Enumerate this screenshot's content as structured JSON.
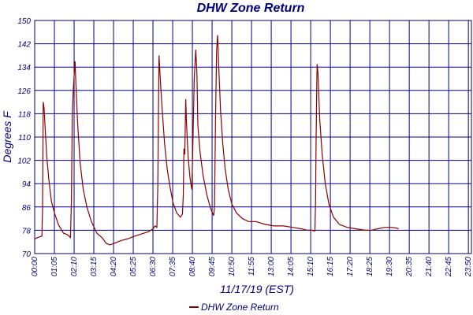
{
  "chart_data": {
    "type": "line",
    "title": "DHW Zone Return",
    "xlabel": "11/17/19 (EST)",
    "ylabel": "Degrees F",
    "ylim": [
      70,
      150
    ],
    "y_ticks": [
      70,
      78,
      86,
      94,
      102,
      110,
      118,
      126,
      134,
      142,
      150
    ],
    "x_ticks": [
      {
        "label": "00:00",
        "minutes": 0
      },
      {
        "label": "01:05",
        "minutes": 65
      },
      {
        "label": "02:10",
        "minutes": 130
      },
      {
        "label": "03:15",
        "minutes": 195
      },
      {
        "label": "04:20",
        "minutes": 260
      },
      {
        "label": "05:25",
        "minutes": 325
      },
      {
        "label": "06:30",
        "minutes": 390
      },
      {
        "label": "07:35",
        "minutes": 455
      },
      {
        "label": "08:40",
        "minutes": 520
      },
      {
        "label": "09:45",
        "minutes": 585
      },
      {
        "label": "10:50",
        "minutes": 650
      },
      {
        "label": "11:55",
        "minutes": 715
      },
      {
        "label": "13:00",
        "minutes": 780
      },
      {
        "label": "14:05",
        "minutes": 845
      },
      {
        "label": "15:10",
        "minutes": 910
      },
      {
        "label": "16:15",
        "minutes": 975
      },
      {
        "label": "17:20",
        "minutes": 1040
      },
      {
        "label": "18:25",
        "minutes": 1105
      },
      {
        "label": "19:30",
        "minutes": 1170
      },
      {
        "label": "20:35",
        "minutes": 1235
      },
      {
        "label": "21:40",
        "minutes": 1300
      },
      {
        "label": "22:45",
        "minutes": 1365
      },
      {
        "label": "23:50",
        "minutes": 1430
      }
    ],
    "xlim_minutes": [
      0,
      1440
    ],
    "grid": true,
    "legend_position": "bottom-center",
    "series": [
      {
        "name": "DHW Zone Return",
        "color": "#8b0000",
        "points": [
          [
            0,
            75.0
          ],
          [
            10,
            75.5
          ],
          [
            24,
            76.0
          ],
          [
            26,
            86.0
          ],
          [
            28,
            122.0
          ],
          [
            31,
            120.0
          ],
          [
            35,
            112.0
          ],
          [
            40,
            103.0
          ],
          [
            47,
            95.0
          ],
          [
            55,
            88.0
          ],
          [
            65,
            84.0
          ],
          [
            78,
            80.0
          ],
          [
            95,
            77.0
          ],
          [
            108,
            76.5
          ],
          [
            118,
            75.5
          ],
          [
            121,
            88.0
          ],
          [
            124,
            118.0
          ],
          [
            127,
            126.0
          ],
          [
            133,
            136.0
          ],
          [
            136,
            128.0
          ],
          [
            142,
            114.0
          ],
          [
            150,
            101.0
          ],
          [
            160,
            92.0
          ],
          [
            172,
            86.0
          ],
          [
            187,
            81.0
          ],
          [
            205,
            77.0
          ],
          [
            222,
            75.5
          ],
          [
            236,
            73.5
          ],
          [
            248,
            73.0
          ],
          [
            262,
            73.5
          ],
          [
            285,
            74.5
          ],
          [
            305,
            75.0
          ],
          [
            330,
            76.0
          ],
          [
            360,
            77.0
          ],
          [
            375,
            77.5
          ],
          [
            390,
            78.5
          ],
          [
            397,
            79.5
          ],
          [
            403,
            79.0
          ],
          [
            405,
            89.0
          ],
          [
            406,
            93.0
          ],
          [
            408,
            119.0
          ],
          [
            410,
            138.0
          ],
          [
            414,
            130.0
          ],
          [
            420,
            120.0
          ],
          [
            428,
            108.0
          ],
          [
            437,
            99.0
          ],
          [
            446,
            93.0
          ],
          [
            456,
            87.5
          ],
          [
            468,
            84.0
          ],
          [
            480,
            82.5
          ],
          [
            487,
            83.5
          ],
          [
            490,
            90.0
          ],
          [
            492,
            106.0
          ],
          [
            495,
            104.0
          ],
          [
            498,
            123.0
          ],
          [
            501,
            114.0
          ],
          [
            506,
            103.0
          ],
          [
            512,
            96.0
          ],
          [
            518,
            92.0
          ],
          [
            521,
            104.0
          ],
          [
            526,
            130.0
          ],
          [
            531,
            140.0
          ],
          [
            535,
            132.0
          ],
          [
            538,
            114.0
          ],
          [
            545,
            105.0
          ],
          [
            555,
            97.0
          ],
          [
            568,
            90.0
          ],
          [
            580,
            85.5
          ],
          [
            590,
            83.0
          ],
          [
            593,
            86.0
          ],
          [
            596,
            114.0
          ],
          [
            600,
            140.0
          ],
          [
            603,
            145.0
          ],
          [
            607,
            134.0
          ],
          [
            613,
            119.0
          ],
          [
            620,
            108.0
          ],
          [
            628,
            99.0
          ],
          [
            638,
            92.0
          ],
          [
            650,
            87.0
          ],
          [
            665,
            84.0
          ],
          [
            685,
            82.0
          ],
          [
            705,
            81.0
          ],
          [
            730,
            81.0
          ],
          [
            760,
            80.0
          ],
          [
            790,
            79.5
          ],
          [
            820,
            79.5
          ],
          [
            850,
            79.0
          ],
          [
            880,
            78.5
          ],
          [
            900,
            78.0
          ],
          [
            915,
            78.0
          ],
          [
            920,
            77.8
          ],
          [
            924,
            77.8
          ],
          [
            926,
            88.0
          ],
          [
            928,
            110.0
          ],
          [
            931,
            135.0
          ],
          [
            934,
            132.0
          ],
          [
            940,
            116.0
          ],
          [
            948,
            104.0
          ],
          [
            958,
            94.0
          ],
          [
            970,
            87.0
          ],
          [
            985,
            82.5
          ],
          [
            1005,
            80.0
          ],
          [
            1030,
            79.0
          ],
          [
            1060,
            78.5
          ],
          [
            1090,
            78.0
          ],
          [
            1110,
            78.0
          ],
          [
            1130,
            78.5
          ],
          [
            1155,
            79.0
          ],
          [
            1175,
            79.0
          ],
          [
            1190,
            78.8
          ],
          [
            1200,
            78.5
          ]
        ]
      }
    ]
  }
}
